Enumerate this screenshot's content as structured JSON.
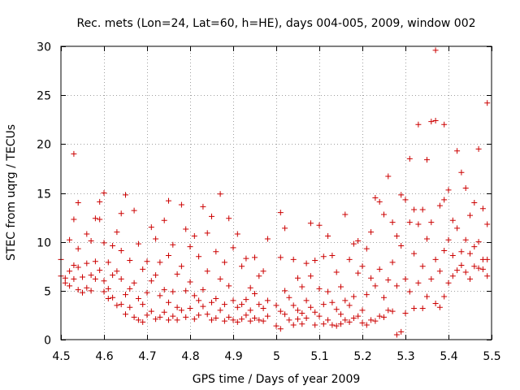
{
  "chart_data": {
    "type": "scatter",
    "title": "Rec. mets (Lon=24, Lat=60, h=HE), days 004-005, 2009, window 002",
    "xlabel": "GPS time / Days of year 2009",
    "ylabel": "STEC from uqrg / TECUs",
    "xlim": [
      4.5,
      5.5
    ],
    "ylim": [
      0,
      30
    ],
    "xticks": [
      "4.5",
      "4.6",
      "4.7",
      "4.8",
      "4.9",
      "5",
      "5.1",
      "5.2",
      "5.3",
      "5.4",
      "5.5"
    ],
    "yticks": [
      "0",
      "5",
      "10",
      "15",
      "20",
      "25",
      "30"
    ],
    "grid": true,
    "marker": "+",
    "marker_color": "#cc0000",
    "series": [
      {
        "points": [
          [
            4.5,
            6.5
          ],
          [
            4.5,
            8.2
          ],
          [
            4.51,
            5.8
          ],
          [
            4.51,
            6.3
          ],
          [
            4.52,
            5.5
          ],
          [
            4.52,
            10.2
          ],
          [
            4.52,
            7.0
          ],
          [
            4.53,
            19.0
          ],
          [
            4.53,
            12.3
          ],
          [
            4.53,
            7.6
          ],
          [
            4.53,
            6.2
          ],
          [
            4.54,
            14.0
          ],
          [
            4.54,
            9.3
          ],
          [
            4.54,
            7.4
          ],
          [
            4.54,
            5.1
          ],
          [
            4.55,
            4.8
          ],
          [
            4.55,
            6.4
          ],
          [
            4.56,
            10.8
          ],
          [
            4.56,
            7.8
          ],
          [
            4.56,
            5.3
          ],
          [
            4.57,
            10.1
          ],
          [
            4.57,
            6.6
          ],
          [
            4.57,
            5.0
          ],
          [
            4.58,
            12.4
          ],
          [
            4.58,
            8.0
          ],
          [
            4.58,
            6.2
          ],
          [
            4.59,
            14.1
          ],
          [
            4.59,
            12.3
          ],
          [
            4.59,
            7.1
          ],
          [
            4.6,
            15.0
          ],
          [
            4.6,
            9.9
          ],
          [
            4.6,
            6.0
          ],
          [
            4.6,
            4.9
          ],
          [
            4.61,
            7.9
          ],
          [
            4.61,
            5.2
          ],
          [
            4.61,
            4.2
          ],
          [
            4.62,
            9.6
          ],
          [
            4.62,
            6.6
          ],
          [
            4.62,
            4.3
          ],
          [
            4.63,
            11.0
          ],
          [
            4.63,
            7.0
          ],
          [
            4.63,
            3.5
          ],
          [
            4.64,
            12.9
          ],
          [
            4.64,
            9.1
          ],
          [
            4.64,
            6.2
          ],
          [
            4.64,
            3.6
          ],
          [
            4.65,
            14.8
          ],
          [
            4.65,
            4.6
          ],
          [
            4.65,
            2.6
          ],
          [
            4.66,
            8.1
          ],
          [
            4.66,
            5.2
          ],
          [
            4.66,
            3.3
          ],
          [
            4.67,
            13.2
          ],
          [
            4.67,
            5.8
          ],
          [
            4.67,
            2.3
          ],
          [
            4.68,
            9.8
          ],
          [
            4.68,
            4.2
          ],
          [
            4.68,
            2.0
          ],
          [
            4.69,
            7.2
          ],
          [
            4.69,
            3.6
          ],
          [
            4.69,
            1.8
          ],
          [
            4.7,
            8.0
          ],
          [
            4.7,
            4.8
          ],
          [
            4.7,
            2.5
          ],
          [
            4.71,
            11.5
          ],
          [
            4.71,
            6.0
          ],
          [
            4.71,
            2.9
          ],
          [
            4.72,
            10.3
          ],
          [
            4.72,
            6.6
          ],
          [
            4.72,
            2.1
          ],
          [
            4.73,
            7.9
          ],
          [
            4.73,
            4.5
          ],
          [
            4.73,
            2.3
          ],
          [
            4.74,
            12.2
          ],
          [
            4.74,
            5.1
          ],
          [
            4.74,
            2.8
          ],
          [
            4.75,
            14.2
          ],
          [
            4.75,
            8.6
          ],
          [
            4.75,
            3.8
          ],
          [
            4.75,
            2.0
          ],
          [
            4.76,
            9.7
          ],
          [
            4.76,
            4.9
          ],
          [
            4.76,
            2.4
          ],
          [
            4.77,
            6.7
          ],
          [
            4.77,
            3.3
          ],
          [
            4.77,
            2.0
          ],
          [
            4.78,
            13.8
          ],
          [
            4.78,
            7.5
          ],
          [
            4.78,
            3.0
          ],
          [
            4.79,
            11.3
          ],
          [
            4.79,
            5.0
          ],
          [
            4.79,
            2.3
          ],
          [
            4.8,
            9.5
          ],
          [
            4.8,
            5.9
          ],
          [
            4.8,
            3.2
          ],
          [
            4.81,
            10.6
          ],
          [
            4.81,
            4.5
          ],
          [
            4.81,
            2.1
          ],
          [
            4.82,
            8.5
          ],
          [
            4.82,
            4.0
          ],
          [
            4.82,
            2.5
          ],
          [
            4.83,
            13.6
          ],
          [
            4.83,
            5.1
          ],
          [
            4.83,
            3.4
          ],
          [
            4.84,
            10.9
          ],
          [
            4.84,
            7.0
          ],
          [
            4.84,
            2.6
          ],
          [
            4.85,
            12.6
          ],
          [
            4.85,
            3.8
          ],
          [
            4.85,
            2.0
          ],
          [
            4.86,
            9.0
          ],
          [
            4.86,
            4.2
          ],
          [
            4.86,
            2.2
          ],
          [
            4.87,
            14.9
          ],
          [
            4.87,
            6.2
          ],
          [
            4.87,
            3.0
          ],
          [
            4.88,
            7.9
          ],
          [
            4.88,
            3.6
          ],
          [
            4.88,
            1.9
          ],
          [
            4.89,
            12.4
          ],
          [
            4.89,
            5.5
          ],
          [
            4.89,
            2.3
          ],
          [
            4.9,
            9.4
          ],
          [
            4.9,
            4.0
          ],
          [
            4.9,
            2.0
          ],
          [
            4.91,
            10.8
          ],
          [
            4.91,
            3.3
          ],
          [
            4.91,
            1.8
          ],
          [
            4.92,
            7.5
          ],
          [
            4.92,
            3.6
          ],
          [
            4.92,
            2.1
          ],
          [
            4.93,
            8.3
          ],
          [
            4.93,
            4.1
          ],
          [
            4.93,
            2.5
          ],
          [
            4.94,
            5.3
          ],
          [
            4.94,
            3.0
          ],
          [
            4.94,
            1.9
          ],
          [
            4.95,
            8.4
          ],
          [
            4.95,
            4.7
          ],
          [
            4.95,
            2.2
          ],
          [
            4.96,
            6.5
          ],
          [
            4.96,
            3.6
          ],
          [
            4.96,
            2.0
          ],
          [
            4.97,
            7.0
          ],
          [
            4.97,
            3.2
          ],
          [
            4.97,
            1.9
          ],
          [
            4.98,
            10.3
          ],
          [
            4.98,
            4.0
          ],
          [
            4.98,
            2.4
          ],
          [
            5.0,
            3.5
          ],
          [
            5.0,
            1.4
          ],
          [
            5.01,
            13.0
          ],
          [
            5.01,
            8.4
          ],
          [
            5.01,
            2.9
          ],
          [
            5.01,
            1.1
          ],
          [
            5.02,
            11.4
          ],
          [
            5.02,
            5.0
          ],
          [
            5.02,
            2.6
          ],
          [
            5.03,
            4.3
          ],
          [
            5.03,
            2.0
          ],
          [
            5.04,
            8.2
          ],
          [
            5.04,
            3.5
          ],
          [
            5.04,
            1.5
          ],
          [
            5.05,
            6.3
          ],
          [
            5.05,
            3.0
          ],
          [
            5.05,
            2.1
          ],
          [
            5.06,
            5.4
          ],
          [
            5.06,
            2.7
          ],
          [
            5.06,
            1.6
          ],
          [
            5.07,
            7.8
          ],
          [
            5.07,
            4.0
          ],
          [
            5.07,
            2.2
          ],
          [
            5.08,
            11.9
          ],
          [
            5.08,
            6.5
          ],
          [
            5.08,
            3.3
          ],
          [
            5.09,
            8.1
          ],
          [
            5.09,
            2.8
          ],
          [
            5.09,
            1.5
          ],
          [
            5.1,
            11.7
          ],
          [
            5.1,
            5.2
          ],
          [
            5.1,
            2.4
          ],
          [
            5.11,
            8.5
          ],
          [
            5.11,
            3.6
          ],
          [
            5.11,
            1.6
          ],
          [
            5.12,
            10.6
          ],
          [
            5.12,
            4.9
          ],
          [
            5.12,
            2.0
          ],
          [
            5.13,
            8.6
          ],
          [
            5.13,
            3.8
          ],
          [
            5.13,
            1.5
          ],
          [
            5.14,
            6.9
          ],
          [
            5.14,
            3.1
          ],
          [
            5.14,
            1.4
          ],
          [
            5.15,
            5.4
          ],
          [
            5.15,
            2.6
          ],
          [
            5.15,
            1.6
          ],
          [
            5.16,
            12.8
          ],
          [
            5.16,
            4.0
          ],
          [
            5.16,
            2.0
          ],
          [
            5.17,
            8.2
          ],
          [
            5.17,
            3.5
          ],
          [
            5.17,
            1.8
          ],
          [
            5.18,
            9.8
          ],
          [
            5.18,
            4.4
          ],
          [
            5.18,
            2.2
          ],
          [
            5.19,
            10.1
          ],
          [
            5.19,
            6.8
          ],
          [
            5.19,
            2.4
          ],
          [
            5.2,
            7.5
          ],
          [
            5.2,
            3.0
          ],
          [
            5.2,
            1.7
          ],
          [
            5.21,
            9.3
          ],
          [
            5.21,
            4.6
          ],
          [
            5.21,
            1.5
          ],
          [
            5.22,
            11.0
          ],
          [
            5.22,
            6.3
          ],
          [
            5.22,
            2.0
          ],
          [
            5.23,
            14.5
          ],
          [
            5.23,
            5.5
          ],
          [
            5.23,
            1.9
          ],
          [
            5.24,
            14.1
          ],
          [
            5.24,
            7.2
          ],
          [
            5.24,
            2.4
          ],
          [
            5.25,
            12.8
          ],
          [
            5.25,
            4.3
          ],
          [
            5.25,
            2.3
          ],
          [
            5.26,
            16.7
          ],
          [
            5.26,
            6.1
          ],
          [
            5.26,
            3.0
          ],
          [
            5.27,
            12.0
          ],
          [
            5.27,
            7.9
          ],
          [
            5.27,
            2.9
          ],
          [
            5.28,
            10.6
          ],
          [
            5.28,
            5.5
          ],
          [
            5.28,
            0.5
          ],
          [
            5.29,
            14.8
          ],
          [
            5.29,
            9.6
          ],
          [
            5.29,
            0.8
          ],
          [
            5.3,
            14.3
          ],
          [
            5.3,
            6.2
          ],
          [
            5.3,
            2.7
          ],
          [
            5.31,
            18.5
          ],
          [
            5.31,
            12.0
          ],
          [
            5.31,
            4.9
          ],
          [
            5.32,
            13.3
          ],
          [
            5.32,
            8.8
          ],
          [
            5.32,
            3.2
          ],
          [
            5.33,
            22.0
          ],
          [
            5.33,
            11.8
          ],
          [
            5.33,
            5.8
          ],
          [
            5.34,
            13.3
          ],
          [
            5.34,
            7.5
          ],
          [
            5.34,
            3.2
          ],
          [
            5.35,
            18.4
          ],
          [
            5.35,
            10.3
          ],
          [
            5.35,
            4.4
          ],
          [
            5.36,
            22.3
          ],
          [
            5.36,
            12.0
          ],
          [
            5.36,
            6.2
          ],
          [
            5.37,
            29.6
          ],
          [
            5.37,
            22.4
          ],
          [
            5.37,
            8.2
          ],
          [
            5.37,
            3.7
          ],
          [
            5.38,
            13.7
          ],
          [
            5.38,
            7.0
          ],
          [
            5.38,
            3.3
          ],
          [
            5.39,
            22.0
          ],
          [
            5.39,
            14.3
          ],
          [
            5.39,
            9.1
          ],
          [
            5.39,
            4.4
          ],
          [
            5.4,
            15.3
          ],
          [
            5.4,
            10.2
          ],
          [
            5.4,
            5.8
          ],
          [
            5.41,
            12.2
          ],
          [
            5.41,
            8.6
          ],
          [
            5.41,
            6.5
          ],
          [
            5.42,
            19.3
          ],
          [
            5.42,
            11.4
          ],
          [
            5.42,
            7.1
          ],
          [
            5.43,
            17.1
          ],
          [
            5.43,
            9.0
          ],
          [
            5.43,
            7.6
          ],
          [
            5.44,
            15.5
          ],
          [
            5.44,
            10.2
          ],
          [
            5.44,
            6.9
          ],
          [
            5.45,
            12.7
          ],
          [
            5.45,
            8.8
          ],
          [
            5.45,
            6.2
          ],
          [
            5.46,
            14.0
          ],
          [
            5.46,
            9.5
          ],
          [
            5.46,
            7.5
          ],
          [
            5.47,
            19.5
          ],
          [
            5.47,
            10.0
          ],
          [
            5.47,
            7.3
          ],
          [
            5.48,
            13.4
          ],
          [
            5.48,
            8.2
          ],
          [
            5.48,
            7.2
          ],
          [
            5.49,
            24.2
          ],
          [
            5.49,
            11.8
          ],
          [
            5.49,
            8.2
          ],
          [
            5.49,
            6.5
          ]
        ]
      }
    ]
  }
}
